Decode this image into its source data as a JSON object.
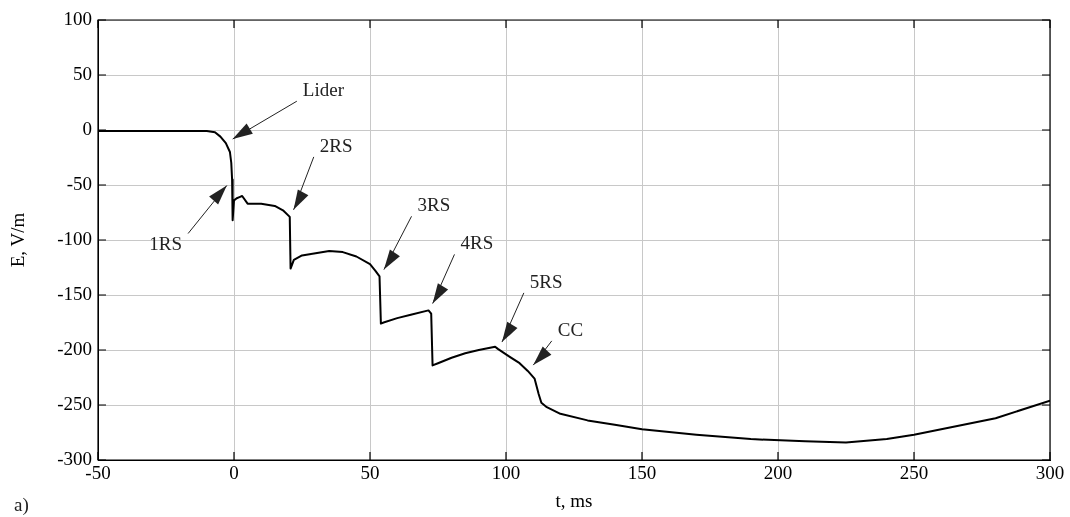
{
  "chart_data": {
    "type": "line",
    "xlabel": "t, ms",
    "ylabel": "E, V/m",
    "x": [
      -50,
      -40,
      -30,
      -20,
      -10,
      -7,
      -5,
      -3,
      -1.5,
      -1,
      -0.7,
      -0.5,
      0,
      1,
      2,
      3,
      5,
      10,
      15,
      18,
      20.5,
      20.8,
      22,
      25,
      30,
      35,
      40,
      45,
      50,
      52,
      53.5,
      54,
      55,
      60,
      65,
      71.5,
      72.5,
      73,
      75,
      80,
      85,
      90,
      96,
      97,
      100,
      105,
      108,
      110.5,
      112,
      113,
      115,
      120,
      130,
      140,
      150,
      170,
      190,
      210,
      225,
      240,
      250,
      260,
      280,
      300
    ],
    "series": [
      {
        "color": "#000000",
        "values": [
          -1,
          -1,
          -1,
          -1,
          -1,
          -2,
          -6,
          -12,
          -20,
          -30,
          -45,
          -82,
          -64,
          -62,
          -61,
          -60,
          -67,
          -67,
          -69,
          -73,
          -79,
          -126,
          -118,
          -114,
          -112,
          -110,
          -111,
          -115,
          -122,
          -128,
          -133,
          -176,
          -175,
          -171,
          -168,
          -164,
          -167,
          -214,
          -212,
          -207,
          -203,
          -200,
          -197,
          -199,
          -204,
          -212,
          -219,
          -226,
          -240,
          -248,
          -252,
          -258,
          -264,
          -268,
          -272,
          -277,
          -281,
          -283,
          -284,
          -281,
          -277,
          -272,
          -262,
          -246
        ]
      }
    ],
    "xlim": [
      -50,
      300
    ],
    "xticks": [
      -50,
      0,
      50,
      100,
      150,
      200,
      250,
      300
    ],
    "ylim": [
      -300,
      100
    ],
    "yticks": [
      -300,
      -250,
      -200,
      -150,
      -100,
      -50,
      0,
      50,
      100
    ],
    "grid": true,
    "legend": false,
    "marker": "none",
    "line_style": "solid",
    "annotations": [
      {
        "text": "Lider",
        "x": -3,
        "y": -12
      },
      {
        "text": "1RS",
        "x": -0.7,
        "y": -45
      },
      {
        "text": "2RS",
        "x": 20.5,
        "y": -79
      },
      {
        "text": "3RS",
        "x": 53.5,
        "y": -133
      },
      {
        "text": "4RS",
        "x": 71.5,
        "y": -164
      },
      {
        "text": "5RS",
        "x": 97,
        "y": -199
      },
      {
        "text": "CC",
        "x": 108,
        "y": -219
      },
      "a)"
    ]
  }
}
